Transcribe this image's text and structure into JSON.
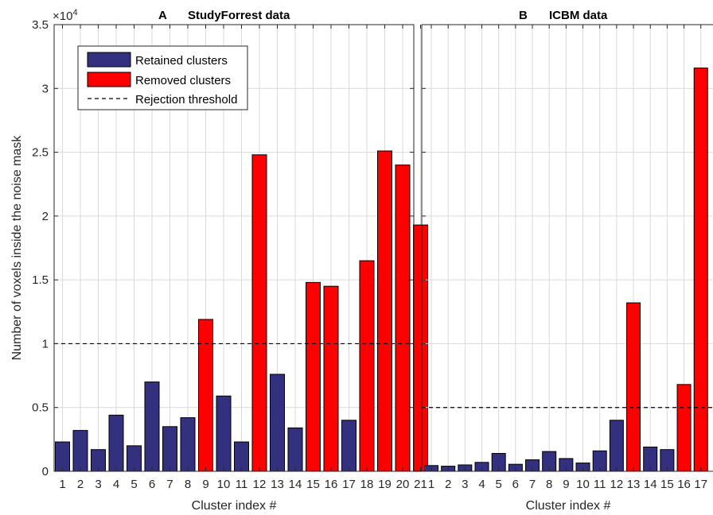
{
  "chart_data": [
    {
      "type": "bar",
      "panel_letter": "A",
      "title": "StudyForrest data",
      "xlabel": "Cluster index #",
      "ylabel": "Number of voxels inside the noise mask",
      "y_multiplier": "×10^4",
      "ylim": [
        0,
        35000
      ],
      "yticks": [
        "0",
        "0.5",
        "1",
        "1.5",
        "2",
        "2.5",
        "3",
        "3.5"
      ],
      "grid": true,
      "threshold": 10000,
      "categories": [
        "1",
        "2",
        "3",
        "4",
        "5",
        "6",
        "7",
        "8",
        "9",
        "10",
        "11",
        "12",
        "13",
        "14",
        "15",
        "16",
        "17",
        "18",
        "19",
        "20",
        "21"
      ],
      "values": [
        2300,
        3200,
        1700,
        4400,
        2000,
        7000,
        3500,
        4200,
        11900,
        5900,
        2300,
        24800,
        7600,
        3400,
        14800,
        14500,
        4000,
        16500,
        25100,
        24000,
        19300
      ],
      "removed": [
        false,
        false,
        false,
        false,
        false,
        false,
        false,
        false,
        true,
        false,
        false,
        true,
        false,
        false,
        true,
        true,
        false,
        true,
        true,
        true,
        true
      ],
      "legend": {
        "position": "top-left",
        "entries": [
          "Retained clusters",
          "Removed clusters",
          "Rejection threshold"
        ]
      }
    },
    {
      "type": "bar",
      "panel_letter": "B",
      "title": "ICBM data",
      "xlabel": "Cluster index #",
      "ylim": [
        0,
        35000
      ],
      "grid": true,
      "threshold": 5000,
      "categories": [
        "1",
        "2",
        "3",
        "4",
        "5",
        "6",
        "7",
        "8",
        "9",
        "10",
        "11",
        "12",
        "13",
        "14",
        "15",
        "16",
        "17"
      ],
      "values": [
        450,
        400,
        500,
        700,
        1400,
        550,
        900,
        1550,
        1000,
        650,
        1600,
        4000,
        13200,
        1900,
        1700,
        6800,
        31600
      ],
      "removed": [
        false,
        false,
        false,
        false,
        false,
        false,
        false,
        false,
        false,
        false,
        false,
        false,
        true,
        false,
        false,
        true,
        true
      ]
    }
  ],
  "colors": {
    "retained": "#33307f",
    "removed": "#ff0000",
    "grid": "#d9d9d9",
    "axis": "#262626"
  }
}
